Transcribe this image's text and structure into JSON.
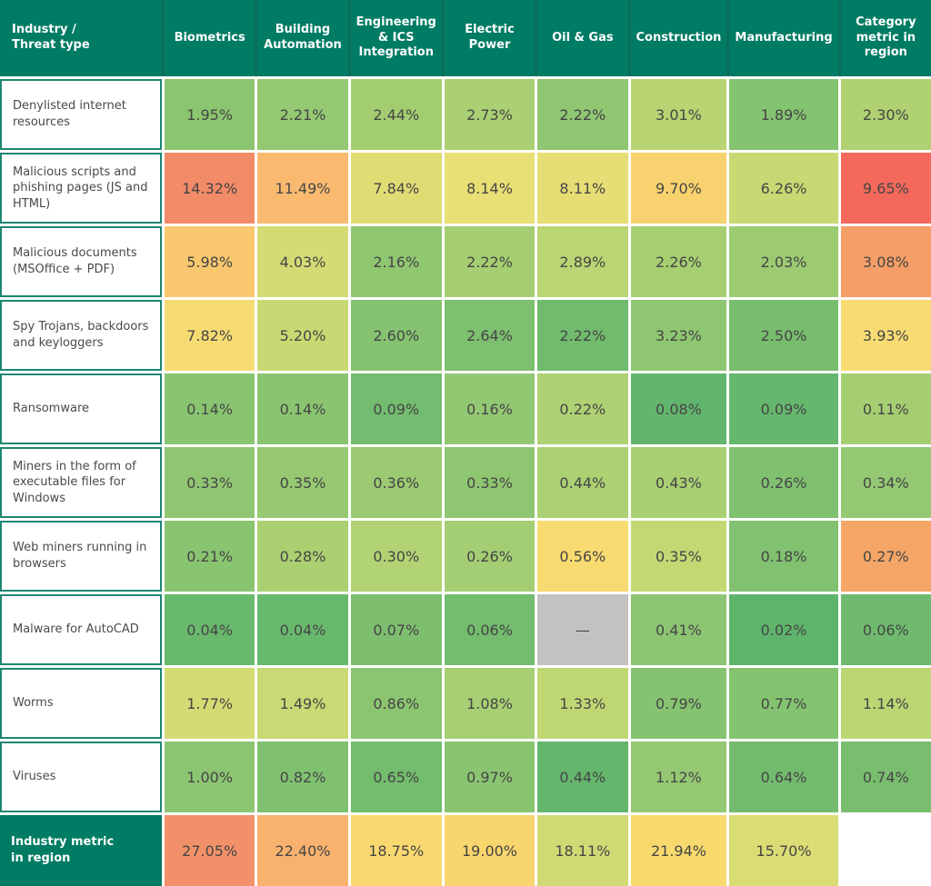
{
  "table": {
    "corner": "Industry /\nThreat type",
    "columns": [
      "Biometrics",
      "Building Automation",
      "Engineering & ICS Integration",
      "Electric Power",
      "Oil & Gas",
      "Construction",
      "Manufacturing",
      "Category metric in region"
    ],
    "rows": [
      {
        "label": "Denylisted internet resources",
        "values": [
          "1.95%",
          "2.21%",
          "2.44%",
          "2.73%",
          "2.22%",
          "3.01%",
          "1.89%",
          "2.30%"
        ],
        "colors": [
          "#8CC56F",
          "#95C872",
          "#A3CD71",
          "#AAD073",
          "#8FC671",
          "#B8D473",
          "#84C370",
          "#AFD172"
        ]
      },
      {
        "label": "Malicious scripts and phishing pages (JS and HTML)",
        "values": [
          "14.32%",
          "11.49%",
          "7.84%",
          "8.14%",
          "8.11%",
          "9.70%",
          "6.26%",
          "9.65%"
        ],
        "colors": [
          "#F28B67",
          "#F9BA70",
          "#E0DC74",
          "#E8DF75",
          "#E6DE74",
          "#F8D26E",
          "#C6D973",
          "#F4695B"
        ]
      },
      {
        "label": "Malicious documents (MSOffice + PDF)",
        "values": [
          "5.98%",
          "4.03%",
          "2.16%",
          "2.22%",
          "2.89%",
          "2.26%",
          "2.03%",
          "3.08%"
        ],
        "colors": [
          "#F8C76E",
          "#D4DB74",
          "#90C771",
          "#A5CE72",
          "#BAD573",
          "#A6CF72",
          "#9CCB72",
          "#F59E67"
        ]
      },
      {
        "label": "Spy Trojans, backdoors and keyloggers",
        "values": [
          "7.82%",
          "5.20%",
          "2.60%",
          "2.64%",
          "2.22%",
          "3.23%",
          "2.50%",
          "3.93%"
        ],
        "colors": [
          "#F6DB72",
          "#C8D973",
          "#85C370",
          "#7DC06F",
          "#71BB6D",
          "#8EC672",
          "#78BD6E",
          "#F8DC72"
        ]
      },
      {
        "label": "Ransomware",
        "values": [
          "0.14%",
          "0.14%",
          "0.09%",
          "0.16%",
          "0.22%",
          "0.08%",
          "0.09%",
          "0.11%"
        ],
        "colors": [
          "#89C471",
          "#8AC471",
          "#74BC6F",
          "#93C873",
          "#AED173",
          "#62B56D",
          "#65B76D",
          "#A5CE72"
        ]
      },
      {
        "label": "Miners in the form of executable files for Windows",
        "values": [
          "0.33%",
          "0.35%",
          "0.36%",
          "0.33%",
          "0.44%",
          "0.43%",
          "0.26%",
          "0.34%"
        ],
        "colors": [
          "#90C672",
          "#97C972",
          "#9BCA72",
          "#8FC671",
          "#ABD173",
          "#A8D072",
          "#80C170",
          "#94C873"
        ]
      },
      {
        "label": "Web miners running in browsers",
        "values": [
          "0.21%",
          "0.28%",
          "0.30%",
          "0.26%",
          "0.56%",
          "0.35%",
          "0.18%",
          "0.27%"
        ],
        "colors": [
          "#89C471",
          "#ABD072",
          "#B2D373",
          "#A4CE73",
          "#F8DB70",
          "#C2D873",
          "#81C170",
          "#F5A667"
        ]
      },
      {
        "label": "Malware for AutoCAD",
        "values": [
          "0.04%",
          "0.04%",
          "0.07%",
          "0.06%",
          "—",
          "0.41%",
          "0.02%",
          "0.06%"
        ],
        "colors": [
          "#69B96D",
          "#69B96D",
          "#7DBF6F",
          "#74BC6E",
          "#C2C2C2",
          "#8CC572",
          "#5FB46C",
          "#6FBA6E"
        ]
      },
      {
        "label": "Worms",
        "values": [
          "1.77%",
          "1.49%",
          "0.86%",
          "1.08%",
          "1.33%",
          "0.79%",
          "0.77%",
          "1.14%"
        ],
        "colors": [
          "#D5DB74",
          "#C9D973",
          "#8CC571",
          "#A7CF73",
          "#BFD773",
          "#86C371",
          "#84C370",
          "#BCD674"
        ]
      },
      {
        "label": "Viruses",
        "values": [
          "1.00%",
          "0.82%",
          "0.65%",
          "0.97%",
          "0.44%",
          "1.12%",
          "0.64%",
          "0.74%"
        ],
        "colors": [
          "#8CC572",
          "#80C170",
          "#74BC6E",
          "#89C471",
          "#64B66C",
          "#95C873",
          "#72BB6D",
          "#79BD6F"
        ]
      },
      {
        "label": "Industry metric\nin region",
        "footer": true,
        "values": [
          "27.05%",
          "22.40%",
          "18.75%",
          "19.00%",
          "18.11%",
          "21.94%",
          "15.70%",
          ""
        ],
        "colors": [
          "#F29169",
          "#F9B26E",
          "#F9D96F",
          "#F9D56D",
          "#CFDA74",
          "#F8D96E",
          "#DADC74",
          "#FFFFFF"
        ]
      }
    ]
  },
  "colors": {
    "header_bg": "#007b64",
    "header_divider": "#0a6e5b",
    "label_border": "#1e8672",
    "value_text": "#454545",
    "label_text": "#4a4a4a",
    "missing_cell": "#C2C2C2",
    "grid_gap": "#ffffff"
  },
  "chart_data": {
    "type": "heatmap",
    "title": "Industry / Threat type — percentage of attacked computers",
    "unit": "%",
    "columns": [
      "Biometrics",
      "Building Automation",
      "Engineering & ICS Integration",
      "Electric Power",
      "Oil & Gas",
      "Construction",
      "Manufacturing",
      "Category metric in region"
    ],
    "rows": [
      "Denylisted internet resources",
      "Malicious scripts and phishing pages (JS and HTML)",
      "Malicious documents (MSOffice + PDF)",
      "Spy Trojans, backdoors and keyloggers",
      "Ransomware",
      "Miners in the form of executable files for Windows",
      "Web miners running in browsers",
      "Malware for AutoCAD",
      "Worms",
      "Viruses",
      "Industry metric in region"
    ],
    "values": [
      [
        1.95,
        2.21,
        2.44,
        2.73,
        2.22,
        3.01,
        1.89,
        2.3
      ],
      [
        14.32,
        11.49,
        7.84,
        8.14,
        8.11,
        9.7,
        6.26,
        9.65
      ],
      [
        5.98,
        4.03,
        2.16,
        2.22,
        2.89,
        2.26,
        2.03,
        3.08
      ],
      [
        7.82,
        5.2,
        2.6,
        2.64,
        2.22,
        3.23,
        2.5,
        3.93
      ],
      [
        0.14,
        0.14,
        0.09,
        0.16,
        0.22,
        0.08,
        0.09,
        0.11
      ],
      [
        0.33,
        0.35,
        0.36,
        0.33,
        0.44,
        0.43,
        0.26,
        0.34
      ],
      [
        0.21,
        0.28,
        0.3,
        0.26,
        0.56,
        0.35,
        0.18,
        0.27
      ],
      [
        0.04,
        0.04,
        0.07,
        0.06,
        null,
        0.41,
        0.02,
        0.06
      ],
      [
        1.77,
        1.49,
        0.86,
        1.08,
        1.33,
        0.79,
        0.77,
        1.14
      ],
      [
        1.0,
        0.82,
        0.65,
        0.97,
        0.44,
        1.12,
        0.64,
        0.74
      ],
      [
        27.05,
        22.4,
        18.75,
        19.0,
        18.11,
        21.94,
        15.7,
        null
      ]
    ],
    "color_scale": "per-row: green (low) → yellow → orange → red (high); gray = no data",
    "legend_position": "none",
    "grid": false
  }
}
